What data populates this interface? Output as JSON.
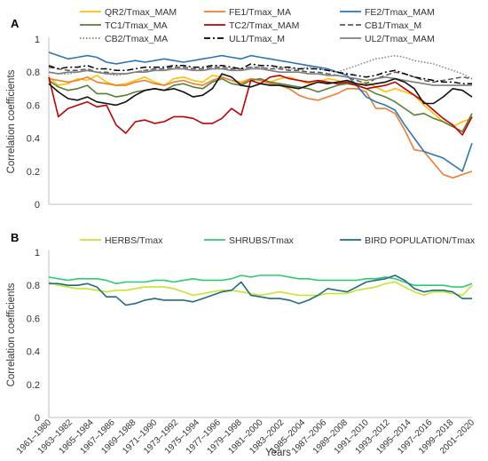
{
  "chart_data": [
    {
      "type": "line",
      "panel_label": "A",
      "xlabel": "Years",
      "ylabel": "Correlation coefficients",
      "ylim": [
        0,
        1
      ],
      "yticks": [
        0,
        0.2,
        0.4,
        0.6,
        0.8,
        1
      ],
      "grid": false,
      "legend_position": "top",
      "series": [
        {
          "name": "QR2/Tmax_MAM",
          "color": "#ffc000",
          "dash": "solid",
          "values": [
            0.77,
            0.72,
            0.73,
            0.76,
            0.75,
            0.78,
            0.74,
            0.72,
            0.73,
            0.75,
            0.77,
            0.74,
            0.72,
            0.76,
            0.77,
            0.75,
            0.74,
            0.78,
            0.77,
            0.75,
            0.74,
            0.76,
            0.75,
            0.74,
            0.76,
            0.77,
            0.75,
            0.73,
            0.74,
            0.76,
            0.75,
            0.73,
            0.72,
            0.74,
            0.71,
            0.68,
            0.7,
            0.68,
            0.66,
            0.6,
            0.55,
            0.5,
            0.47,
            0.5,
            0.52
          ]
        },
        {
          "name": "FE1/Tmax_MA",
          "color": "#ed7d31",
          "dash": "solid",
          "values": [
            0.76,
            0.75,
            0.74,
            0.75,
            0.77,
            0.74,
            0.73,
            0.72,
            0.72,
            0.74,
            0.75,
            0.73,
            0.72,
            0.74,
            0.75,
            0.73,
            0.72,
            0.75,
            0.77,
            0.75,
            0.73,
            0.76,
            0.75,
            0.73,
            0.72,
            0.7,
            0.66,
            0.64,
            0.63,
            0.65,
            0.67,
            0.7,
            0.7,
            0.68,
            0.58,
            0.58,
            0.55,
            0.45,
            0.33,
            0.32,
            0.25,
            0.18,
            0.16,
            0.18,
            0.2
          ]
        },
        {
          "name": "FE2/Tmax_MAM",
          "color": "#2e75b6",
          "dash": "solid",
          "values": [
            0.92,
            0.9,
            0.88,
            0.89,
            0.9,
            0.89,
            0.86,
            0.85,
            0.86,
            0.87,
            0.86,
            0.87,
            0.88,
            0.87,
            0.86,
            0.87,
            0.88,
            0.89,
            0.9,
            0.89,
            0.88,
            0.9,
            0.89,
            0.88,
            0.87,
            0.86,
            0.85,
            0.84,
            0.83,
            0.82,
            0.8,
            0.78,
            0.72,
            0.65,
            0.62,
            0.6,
            0.57,
            0.48,
            0.4,
            0.32,
            0.3,
            0.28,
            0.24,
            0.2,
            0.37
          ]
        },
        {
          "name": "TC1/Tmax_MA",
          "color": "#548235",
          "dash": "solid",
          "values": [
            0.75,
            0.71,
            0.69,
            0.7,
            0.72,
            0.67,
            0.67,
            0.65,
            0.66,
            0.68,
            0.69,
            0.7,
            0.69,
            0.72,
            0.73,
            0.71,
            0.7,
            0.74,
            0.76,
            0.73,
            0.72,
            0.75,
            0.76,
            0.74,
            0.73,
            0.72,
            0.71,
            0.7,
            0.68,
            0.7,
            0.72,
            0.73,
            0.72,
            0.7,
            0.67,
            0.65,
            0.62,
            0.58,
            0.54,
            0.55,
            0.52,
            0.5,
            0.47,
            0.44,
            0.55
          ]
        },
        {
          "name": "TC2/Tmax_MAM",
          "color": "#c00000",
          "dash": "solid",
          "values": [
            0.77,
            0.53,
            0.58,
            0.6,
            0.62,
            0.59,
            0.6,
            0.48,
            0.43,
            0.5,
            0.51,
            0.49,
            0.5,
            0.53,
            0.53,
            0.52,
            0.49,
            0.49,
            0.52,
            0.58,
            0.54,
            0.75,
            0.73,
            0.77,
            0.78,
            0.76,
            0.75,
            0.74,
            0.75,
            0.74,
            0.73,
            0.74,
            0.72,
            0.7,
            0.71,
            0.72,
            0.74,
            0.7,
            0.66,
            0.62,
            0.57,
            0.52,
            0.48,
            0.42,
            0.53
          ]
        },
        {
          "name": "CB1/Tmax_M",
          "color": "#595959",
          "dash": "dashed",
          "values": [
            0.83,
            0.82,
            0.81,
            0.81,
            0.82,
            0.8,
            0.8,
            0.79,
            0.79,
            0.8,
            0.81,
            0.82,
            0.82,
            0.83,
            0.83,
            0.82,
            0.82,
            0.83,
            0.83,
            0.82,
            0.82,
            0.83,
            0.83,
            0.82,
            0.82,
            0.81,
            0.81,
            0.8,
            0.8,
            0.79,
            0.78,
            0.77,
            0.75,
            0.73,
            0.76,
            0.78,
            0.8,
            0.79,
            0.77,
            0.75,
            0.74,
            0.75,
            0.76,
            0.77,
            0.76
          ]
        },
        {
          "name": "CB2/Tmax_MA",
          "color": "#808080",
          "dash": "dotted",
          "values": [
            0.8,
            0.79,
            0.79,
            0.8,
            0.81,
            0.8,
            0.79,
            0.78,
            0.79,
            0.8,
            0.81,
            0.81,
            0.81,
            0.82,
            0.82,
            0.81,
            0.81,
            0.82,
            0.82,
            0.81,
            0.81,
            0.83,
            0.83,
            0.82,
            0.83,
            0.82,
            0.82,
            0.83,
            0.82,
            0.81,
            0.8,
            0.82,
            0.84,
            0.86,
            0.88,
            0.89,
            0.9,
            0.89,
            0.87,
            0.86,
            0.85,
            0.83,
            0.81,
            0.79,
            0.76
          ]
        },
        {
          "name": "UL1/Tmax_M",
          "color": "#000000",
          "dash": "dashdot",
          "values": [
            0.84,
            0.82,
            0.83,
            0.83,
            0.84,
            0.82,
            0.82,
            0.81,
            0.81,
            0.82,
            0.83,
            0.83,
            0.83,
            0.84,
            0.84,
            0.83,
            0.83,
            0.84,
            0.84,
            0.83,
            0.82,
            0.85,
            0.84,
            0.84,
            0.83,
            0.83,
            0.82,
            0.82,
            0.82,
            0.81,
            0.8,
            0.79,
            0.78,
            0.77,
            0.78,
            0.8,
            0.81,
            0.79,
            0.77,
            0.76,
            0.75,
            0.74,
            0.74,
            0.73,
            0.73
          ]
        },
        {
          "name": "UL2/Tmax_MAM",
          "color": "#7f7f7f",
          "dash": "solid",
          "values": [
            0.8,
            0.79,
            0.8,
            0.8,
            0.81,
            0.8,
            0.79,
            0.79,
            0.79,
            0.8,
            0.8,
            0.81,
            0.81,
            0.82,
            0.82,
            0.81,
            0.81,
            0.82,
            0.82,
            0.81,
            0.81,
            0.82,
            0.82,
            0.81,
            0.8,
            0.8,
            0.8,
            0.79,
            0.79,
            0.78,
            0.78,
            0.77,
            0.76,
            0.75,
            0.76,
            0.77,
            0.76,
            0.75,
            0.74,
            0.73,
            0.72,
            0.72,
            0.72,
            0.72,
            0.72
          ]
        },
        {
          "name": "",
          "color": "#111111",
          "dash": "solid",
          "values": [
            0.73,
            0.68,
            0.64,
            0.63,
            0.65,
            0.62,
            0.61,
            0.6,
            0.62,
            0.66,
            0.69,
            0.7,
            0.69,
            0.7,
            0.68,
            0.65,
            0.66,
            0.7,
            0.79,
            0.77,
            0.72,
            0.71,
            0.73,
            0.72,
            0.72,
            0.71,
            0.7,
            0.72,
            0.74,
            0.73,
            0.74,
            0.75,
            0.73,
            0.72,
            0.73,
            0.74,
            0.76,
            0.74,
            0.7,
            0.61,
            0.61,
            0.65,
            0.7,
            0.69,
            0.65
          ]
        }
      ]
    },
    {
      "type": "line",
      "panel_label": "B",
      "xlabel": "Years",
      "ylabel": "Correlation coefficients",
      "ylim": [
        0,
        1
      ],
      "yticks": [
        0,
        0.2,
        0.4,
        0.6,
        0.8,
        1
      ],
      "grid": false,
      "legend_position": "top",
      "series": [
        {
          "name": "HERBS/Tmax",
          "color": "#c6e52c",
          "dash": "solid",
          "values": [
            0.82,
            0.8,
            0.79,
            0.78,
            0.78,
            0.77,
            0.76,
            0.77,
            0.77,
            0.78,
            0.79,
            0.79,
            0.79,
            0.78,
            0.76,
            0.74,
            0.75,
            0.76,
            0.77,
            0.77,
            0.76,
            0.75,
            0.74,
            0.75,
            0.76,
            0.75,
            0.74,
            0.74,
            0.74,
            0.75,
            0.75,
            0.75,
            0.77,
            0.78,
            0.79,
            0.81,
            0.82,
            0.79,
            0.76,
            0.74,
            0.76,
            0.76,
            0.75,
            0.74,
            0.8
          ]
        },
        {
          "name": "SHRUBS/Tmax",
          "color": "#2ecc71",
          "dash": "solid",
          "values": [
            0.85,
            0.84,
            0.83,
            0.84,
            0.84,
            0.84,
            0.83,
            0.81,
            0.82,
            0.82,
            0.82,
            0.83,
            0.83,
            0.82,
            0.83,
            0.84,
            0.83,
            0.83,
            0.83,
            0.84,
            0.86,
            0.85,
            0.86,
            0.86,
            0.86,
            0.85,
            0.84,
            0.84,
            0.83,
            0.83,
            0.83,
            0.83,
            0.83,
            0.84,
            0.84,
            0.85,
            0.84,
            0.82,
            0.8,
            0.8,
            0.8,
            0.8,
            0.79,
            0.79,
            0.81
          ]
        },
        {
          "name": "BIRD POPULATION/Tmax",
          "color": "#1f6e7e",
          "dash": "solid",
          "values": [
            0.81,
            0.81,
            0.8,
            0.8,
            0.81,
            0.79,
            0.73,
            0.73,
            0.68,
            0.69,
            0.71,
            0.72,
            0.71,
            0.71,
            0.71,
            0.7,
            0.72,
            0.74,
            0.76,
            0.77,
            0.82,
            0.74,
            0.73,
            0.72,
            0.72,
            0.71,
            0.69,
            0.71,
            0.74,
            0.78,
            0.77,
            0.76,
            0.79,
            0.82,
            0.83,
            0.84,
            0.86,
            0.83,
            0.78,
            0.76,
            0.77,
            0.77,
            0.76,
            0.72,
            0.72
          ]
        }
      ]
    }
  ],
  "x_tick_labels": [
    "1961–1980",
    "1963–1982",
    "1965–1984",
    "1967–1986",
    "1969–1988",
    "1971–1990",
    "1973–1992",
    "1975–1994",
    "1977–1996",
    "1979–1998",
    "1981–2000",
    "1983–2002",
    "1985–2004",
    "1987–2006",
    "1989–2008",
    "1991–2010",
    "1993–2012",
    "1995–2014",
    "1997–2016",
    "1999–2018",
    "2001–2020"
  ],
  "x_tick_count": 41
}
